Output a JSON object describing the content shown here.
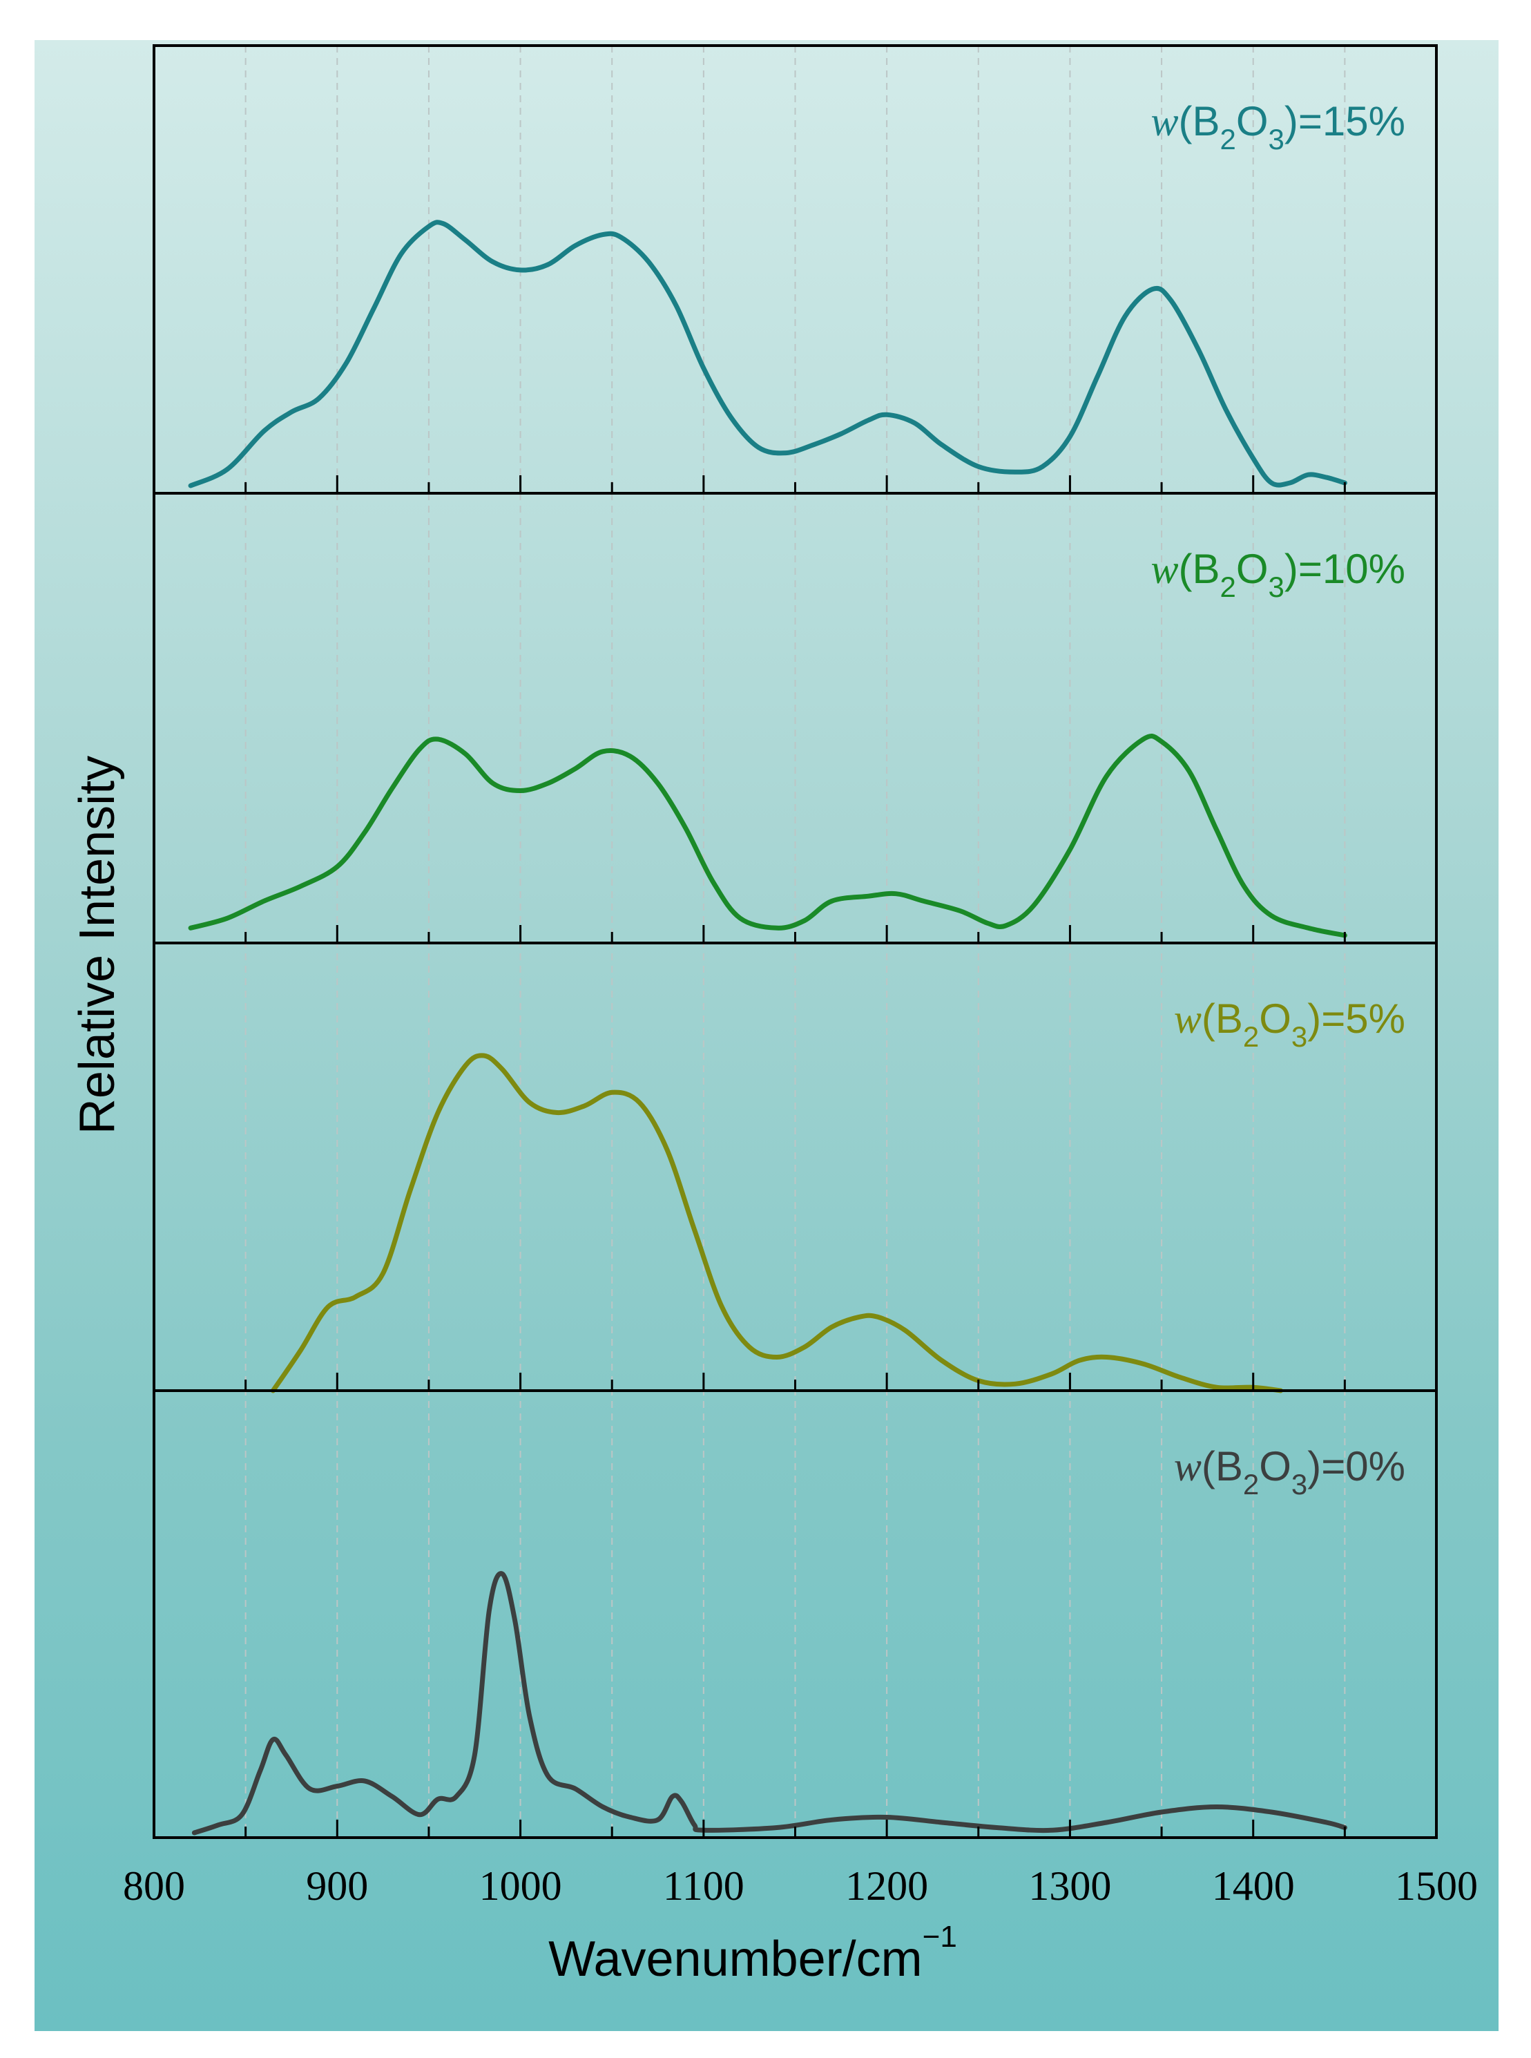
{
  "chart_data": {
    "type": "line",
    "xlabel": "Wavenumber/cm",
    "xlabel_superscript": "−1",
    "ylabel": "Relative Intensity",
    "xlim": [
      800,
      1500
    ],
    "xticks": [
      800,
      900,
      1000,
      1100,
      1200,
      1300,
      1400,
      1500
    ],
    "grid": "vertical dashed",
    "panels": [
      {
        "name": "15%",
        "label": {
          "prefix": "w",
          "open": "(B",
          "sub1": "2",
          "mid": "O",
          "sub2": "3",
          "close": ")=15%"
        },
        "color": "#1a7f86",
        "series": [
          [
            820,
            0.0
          ],
          [
            840,
            0.06
          ],
          [
            860,
            0.2
          ],
          [
            875,
            0.27
          ],
          [
            890,
            0.32
          ],
          [
            905,
            0.45
          ],
          [
            920,
            0.65
          ],
          [
            935,
            0.85
          ],
          [
            950,
            0.95
          ],
          [
            958,
            0.96
          ],
          [
            970,
            0.9
          ],
          [
            985,
            0.82
          ],
          [
            1000,
            0.79
          ],
          [
            1015,
            0.81
          ],
          [
            1030,
            0.88
          ],
          [
            1045,
            0.92
          ],
          [
            1055,
            0.91
          ],
          [
            1070,
            0.82
          ],
          [
            1085,
            0.66
          ],
          [
            1100,
            0.43
          ],
          [
            1115,
            0.25
          ],
          [
            1130,
            0.14
          ],
          [
            1145,
            0.12
          ],
          [
            1160,
            0.15
          ],
          [
            1175,
            0.19
          ],
          [
            1190,
            0.24
          ],
          [
            1200,
            0.26
          ],
          [
            1215,
            0.23
          ],
          [
            1230,
            0.15
          ],
          [
            1250,
            0.07
          ],
          [
            1270,
            0.05
          ],
          [
            1285,
            0.07
          ],
          [
            1300,
            0.18
          ],
          [
            1315,
            0.4
          ],
          [
            1330,
            0.62
          ],
          [
            1345,
            0.72
          ],
          [
            1355,
            0.68
          ],
          [
            1370,
            0.5
          ],
          [
            1385,
            0.28
          ],
          [
            1400,
            0.1
          ],
          [
            1410,
            0.01
          ],
          [
            1420,
            0.01
          ],
          [
            1430,
            0.04
          ],
          [
            1440,
            0.03
          ],
          [
            1450,
            0.01
          ]
        ]
      },
      {
        "name": "10%",
        "label": {
          "prefix": "w",
          "open": "(B",
          "sub1": "2",
          "mid": "O",
          "sub2": "3",
          "close": ")=10%"
        },
        "color": "#1a8a28",
        "series": [
          [
            820,
            0.03
          ],
          [
            840,
            0.07
          ],
          [
            860,
            0.14
          ],
          [
            880,
            0.2
          ],
          [
            900,
            0.28
          ],
          [
            915,
            0.42
          ],
          [
            930,
            0.6
          ],
          [
            945,
            0.76
          ],
          [
            955,
            0.8
          ],
          [
            970,
            0.74
          ],
          [
            985,
            0.62
          ],
          [
            1000,
            0.59
          ],
          [
            1015,
            0.62
          ],
          [
            1030,
            0.68
          ],
          [
            1045,
            0.75
          ],
          [
            1060,
            0.73
          ],
          [
            1075,
            0.62
          ],
          [
            1090,
            0.44
          ],
          [
            1105,
            0.22
          ],
          [
            1120,
            0.07
          ],
          [
            1140,
            0.03
          ],
          [
            1155,
            0.06
          ],
          [
            1170,
            0.14
          ],
          [
            1190,
            0.16
          ],
          [
            1205,
            0.17
          ],
          [
            1220,
            0.14
          ],
          [
            1240,
            0.1
          ],
          [
            1255,
            0.05
          ],
          [
            1265,
            0.04
          ],
          [
            1280,
            0.12
          ],
          [
            1300,
            0.35
          ],
          [
            1320,
            0.65
          ],
          [
            1340,
            0.8
          ],
          [
            1350,
            0.79
          ],
          [
            1365,
            0.67
          ],
          [
            1380,
            0.43
          ],
          [
            1395,
            0.2
          ],
          [
            1410,
            0.08
          ],
          [
            1430,
            0.03
          ],
          [
            1450,
            0.0
          ]
        ]
      },
      {
        "name": "5%",
        "label": {
          "prefix": "w",
          "open": "(B",
          "sub1": "2",
          "mid": "O",
          "sub2": "3",
          "close": ")=5%"
        },
        "color": "#7e8a10",
        "series": [
          [
            865,
            0.0
          ],
          [
            880,
            0.12
          ],
          [
            895,
            0.25
          ],
          [
            910,
            0.28
          ],
          [
            925,
            0.35
          ],
          [
            940,
            0.6
          ],
          [
            955,
            0.83
          ],
          [
            970,
            0.97
          ],
          [
            980,
            1.0
          ],
          [
            990,
            0.96
          ],
          [
            1005,
            0.86
          ],
          [
            1020,
            0.83
          ],
          [
            1035,
            0.85
          ],
          [
            1050,
            0.89
          ],
          [
            1065,
            0.86
          ],
          [
            1080,
            0.72
          ],
          [
            1095,
            0.48
          ],
          [
            1110,
            0.25
          ],
          [
            1125,
            0.13
          ],
          [
            1140,
            0.1
          ],
          [
            1155,
            0.13
          ],
          [
            1170,
            0.19
          ],
          [
            1185,
            0.22
          ],
          [
            1195,
            0.22
          ],
          [
            1210,
            0.18
          ],
          [
            1230,
            0.09
          ],
          [
            1250,
            0.03
          ],
          [
            1270,
            0.02
          ],
          [
            1290,
            0.05
          ],
          [
            1305,
            0.09
          ],
          [
            1320,
            0.1
          ],
          [
            1340,
            0.08
          ],
          [
            1360,
            0.04
          ],
          [
            1380,
            0.01
          ],
          [
            1400,
            0.01
          ],
          [
            1415,
            0.0
          ]
        ]
      },
      {
        "name": "0%",
        "label": {
          "prefix": "w",
          "open": "(B",
          "sub1": "2",
          "mid": "O",
          "sub2": "3",
          "close": ")=0%"
        },
        "color": "#3c3f3f",
        "series": [
          [
            822,
            0.0
          ],
          [
            835,
            0.03
          ],
          [
            848,
            0.07
          ],
          [
            858,
            0.24
          ],
          [
            865,
            0.36
          ],
          [
            872,
            0.3
          ],
          [
            885,
            0.17
          ],
          [
            900,
            0.18
          ],
          [
            915,
            0.2
          ],
          [
            930,
            0.14
          ],
          [
            945,
            0.07
          ],
          [
            955,
            0.13
          ],
          [
            965,
            0.14
          ],
          [
            975,
            0.3
          ],
          [
            983,
            0.86
          ],
          [
            990,
            1.0
          ],
          [
            997,
            0.82
          ],
          [
            1005,
            0.45
          ],
          [
            1015,
            0.22
          ],
          [
            1030,
            0.17
          ],
          [
            1045,
            0.1
          ],
          [
            1060,
            0.06
          ],
          [
            1075,
            0.05
          ],
          [
            1083,
            0.14
          ],
          [
            1088,
            0.12
          ],
          [
            1095,
            0.03
          ],
          [
            1100,
            0.01
          ],
          [
            1140,
            0.02
          ],
          [
            1170,
            0.05
          ],
          [
            1200,
            0.06
          ],
          [
            1230,
            0.04
          ],
          [
            1260,
            0.02
          ],
          [
            1290,
            0.01
          ],
          [
            1320,
            0.04
          ],
          [
            1350,
            0.08
          ],
          [
            1380,
            0.1
          ],
          [
            1410,
            0.08
          ],
          [
            1440,
            0.04
          ],
          [
            1450,
            0.02
          ]
        ]
      }
    ]
  }
}
